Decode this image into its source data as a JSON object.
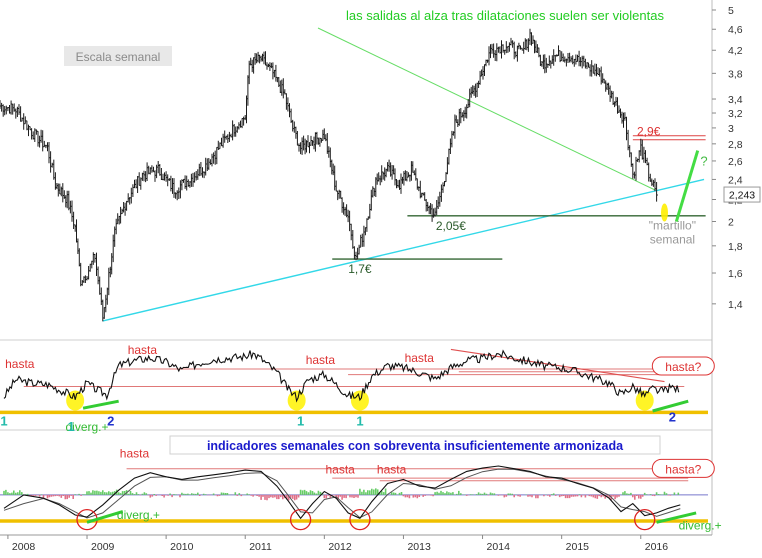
{
  "chart_data": [
    {
      "type": "line",
      "subtype": "candlestick-weekly",
      "y_scale": "log",
      "ylim": [
        1.25,
        5.0
      ],
      "y_ticks": [
        "5",
        "4,6",
        "4,2",
        "3,8",
        "3,4",
        "3,2",
        "3",
        "2,8",
        "2,6",
        "2,4",
        "2,2",
        "2",
        "1,8",
        "1,6",
        "1,4"
      ],
      "x_labels": [
        "2008",
        "2009",
        "2010",
        "2011",
        "2012",
        "2013",
        "2014",
        "2015",
        "2016"
      ],
      "series": [
        {
          "values": [
            [
              2007.9,
              3.3
            ],
            [
              2008.1,
              3.25
            ],
            [
              2008.3,
              2.95
            ],
            [
              2008.5,
              2.75
            ],
            [
              2008.6,
              2.35
            ],
            [
              2008.75,
              2.2
            ],
            [
              2008.85,
              1.95
            ],
            [
              2008.92,
              1.55
            ],
            [
              2009.0,
              1.6
            ],
            [
              2009.1,
              1.72
            ],
            [
              2009.2,
              1.32
            ],
            [
              2009.35,
              1.9
            ],
            [
              2009.5,
              2.2
            ],
            [
              2009.7,
              2.45
            ],
            [
              2009.9,
              2.5
            ],
            [
              2010.1,
              2.3
            ],
            [
              2010.3,
              2.4
            ],
            [
              2010.5,
              2.55
            ],
            [
              2010.7,
              2.8
            ],
            [
              2010.9,
              3.05
            ],
            [
              2011.0,
              3.15
            ],
            [
              2011.05,
              3.95
            ],
            [
              2011.2,
              4.05
            ],
            [
              2011.35,
              3.8
            ],
            [
              2011.5,
              3.45
            ],
            [
              2011.6,
              3.0
            ],
            [
              2011.7,
              2.75
            ],
            [
              2011.85,
              2.85
            ],
            [
              2012.0,
              2.9
            ],
            [
              2012.15,
              2.3
            ],
            [
              2012.3,
              2.05
            ],
            [
              2012.4,
              1.7
            ],
            [
              2012.5,
              1.92
            ],
            [
              2012.65,
              2.4
            ],
            [
              2012.8,
              2.5
            ],
            [
              2012.95,
              2.35
            ],
            [
              2013.1,
              2.5
            ],
            [
              2013.25,
              2.2
            ],
            [
              2013.4,
              2.05
            ],
            [
              2013.5,
              2.35
            ],
            [
              2013.65,
              3.05
            ],
            [
              2013.8,
              3.3
            ],
            [
              2013.95,
              3.7
            ],
            [
              2014.1,
              4.2
            ],
            [
              2014.3,
              4.3
            ],
            [
              2014.5,
              4.15
            ],
            [
              2014.6,
              4.5
            ],
            [
              2014.75,
              3.95
            ],
            [
              2014.9,
              4.1
            ],
            [
              2015.1,
              4.1
            ],
            [
              2015.3,
              3.95
            ],
            [
              2015.5,
              3.75
            ],
            [
              2015.65,
              3.4
            ],
            [
              2015.8,
              3.1
            ],
            [
              2015.9,
              2.45
            ],
            [
              2016.0,
              2.75
            ],
            [
              2016.1,
              2.45
            ],
            [
              2016.2,
              2.243
            ]
          ]
        }
      ],
      "current_value_label": "2,243",
      "titles_on_chart": {
        "scale_label": "Escala semanal",
        "top_annotation": "las salidas al alza tras dilataciones suelen ser violentas"
      },
      "annotations": [
        {
          "text": "1,7€",
          "x": 2012.45,
          "y": 1.7
        },
        {
          "text": "2,05€",
          "x": 2013.6,
          "y": 2.05
        },
        {
          "text": "2,9€",
          "x": 2016.1,
          "y": 2.9
        },
        {
          "text": "?",
          "x": 2016.8,
          "y": 2.55
        },
        {
          "text": "\"martillo\"",
          "x": 2016.4,
          "y": 1.93
        },
        {
          "text": "semanal",
          "x": 2016.4,
          "y": 1.82
        }
      ],
      "support_lines": [
        1.7,
        2.05
      ],
      "resistance_lines": [
        2.9,
        2.85
      ],
      "trendline": {
        "from": [
          2009.2,
          1.3
        ],
        "to": [
          2016.8,
          2.4
        ]
      },
      "grid": false
    },
    {
      "type": "line",
      "subtype": "oscillator",
      "ylim": [
        0,
        100
      ],
      "series": [
        {
          "values": [
            [
              2007.95,
              30
            ],
            [
              2008.1,
              55
            ],
            [
              2008.3,
              50
            ],
            [
              2008.5,
              48
            ],
            [
              2008.7,
              38
            ],
            [
              2008.85,
              30
            ],
            [
              2009.0,
              50
            ],
            [
              2009.1,
              42
            ],
            [
              2009.25,
              33
            ],
            [
              2009.4,
              75
            ],
            [
              2009.6,
              82
            ],
            [
              2009.8,
              86
            ],
            [
              2010.0,
              80
            ],
            [
              2010.2,
              68
            ],
            [
              2010.4,
              78
            ],
            [
              2010.6,
              84
            ],
            [
              2010.8,
              86
            ],
            [
              2011.0,
              88
            ],
            [
              2011.1,
              92
            ],
            [
              2011.2,
              85
            ],
            [
              2011.4,
              65
            ],
            [
              2011.55,
              40
            ],
            [
              2011.65,
              30
            ],
            [
              2011.8,
              55
            ],
            [
              2012.0,
              62
            ],
            [
              2012.15,
              48
            ],
            [
              2012.3,
              32
            ],
            [
              2012.45,
              30
            ],
            [
              2012.6,
              60
            ],
            [
              2012.8,
              75
            ],
            [
              2013.0,
              72
            ],
            [
              2013.2,
              65
            ],
            [
              2013.4,
              56
            ],
            [
              2013.6,
              72
            ],
            [
              2013.8,
              82
            ],
            [
              2014.0,
              85
            ],
            [
              2014.2,
              92
            ],
            [
              2014.4,
              86
            ],
            [
              2014.6,
              80
            ],
            [
              2014.8,
              74
            ],
            [
              2015.0,
              72
            ],
            [
              2015.2,
              66
            ],
            [
              2015.4,
              58
            ],
            [
              2015.6,
              50
            ],
            [
              2015.75,
              34
            ],
            [
              2015.9,
              45
            ],
            [
              2016.05,
              32
            ],
            [
              2016.15,
              42
            ],
            [
              2016.25,
              38
            ],
            [
              2016.4,
              44
            ],
            [
              2016.5,
              40
            ]
          ]
        }
      ],
      "labels": [
        "hasta",
        "hasta",
        "hasta",
        "hasta",
        "hasta?",
        "diverg.+",
        "1",
        "1",
        "2",
        "1",
        "1",
        "2"
      ],
      "grid": false
    },
    {
      "type": "line",
      "subtype": "oscillator-with-histogram",
      "ylim": [
        0,
        100
      ],
      "title_banner": "indicadores semanales con sobreventa insuficientemente armonizada",
      "series": [
        {
          "values": [
            [
              2007.95,
              25
            ],
            [
              2008.2,
              45
            ],
            [
              2008.45,
              40
            ],
            [
              2008.65,
              30
            ],
            [
              2008.85,
              15
            ],
            [
              2009.0,
              12
            ],
            [
              2009.2,
              30
            ],
            [
              2009.4,
              52
            ],
            [
              2009.6,
              70
            ],
            [
              2009.8,
              78
            ],
            [
              2010.0,
              72
            ],
            [
              2010.2,
              68
            ],
            [
              2010.4,
              72
            ],
            [
              2010.6,
              75
            ],
            [
              2010.8,
              78
            ],
            [
              2011.0,
              82
            ],
            [
              2011.2,
              80
            ],
            [
              2011.4,
              58
            ],
            [
              2011.55,
              35
            ],
            [
              2011.7,
              10
            ],
            [
              2011.85,
              32
            ],
            [
              2012.0,
              50
            ],
            [
              2012.15,
              40
            ],
            [
              2012.3,
              18
            ],
            [
              2012.45,
              10
            ],
            [
              2012.6,
              35
            ],
            [
              2012.8,
              62
            ],
            [
              2013.0,
              68
            ],
            [
              2013.2,
              58
            ],
            [
              2013.4,
              55
            ],
            [
              2013.6,
              68
            ],
            [
              2013.8,
              80
            ],
            [
              2014.0,
              85
            ],
            [
              2014.2,
              88
            ],
            [
              2014.4,
              84
            ],
            [
              2014.6,
              80
            ],
            [
              2014.8,
              72
            ],
            [
              2015.0,
              70
            ],
            [
              2015.2,
              62
            ],
            [
              2015.4,
              55
            ],
            [
              2015.6,
              40
            ],
            [
              2015.75,
              20
            ],
            [
              2015.9,
              32
            ],
            [
              2016.05,
              14
            ],
            [
              2016.2,
              18
            ],
            [
              2016.35,
              25
            ],
            [
              2016.5,
              30
            ]
          ]
        }
      ],
      "labels": [
        "hasta",
        "hasta",
        "hasta",
        "hasta?",
        "diverg.+",
        "diverg.+"
      ],
      "grid": false
    }
  ]
}
